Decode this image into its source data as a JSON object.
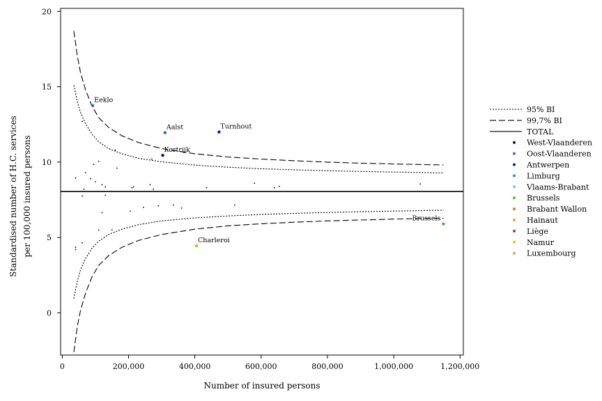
{
  "chart_data": {
    "type": "scatter",
    "title": "",
    "xlabel": "Number of insured persons",
    "ylabel_lines": [
      "Standardised number of H.C. services",
      "per 100,000 insured persons"
    ],
    "xlim": [
      -5000,
      1210000
    ],
    "ylim": [
      -2.8,
      20.2
    ],
    "xticks": [
      0,
      200000,
      400000,
      600000,
      800000,
      1000000,
      1200000
    ],
    "xtick_labels": [
      "0",
      "200,000",
      "400,000",
      "600,000",
      "800,000",
      "1,000,000",
      "1,200,000"
    ],
    "yticks": [
      0,
      5,
      10,
      15,
      20
    ],
    "ytick_labels": [
      "0",
      "5",
      "10",
      "15",
      "20"
    ],
    "grid": false,
    "legend_position": "right",
    "total": 8.05,
    "limits": {
      "x": [
        35000,
        45000,
        55000,
        70000,
        90000,
        110000,
        140000,
        180000,
        230000,
        300000,
        400000,
        500000,
        600000,
        700000,
        800000,
        900000,
        1000000,
        1100000,
        1150000
      ],
      "upper_95": [
        15.1,
        14.05,
        13.3,
        12.55,
        11.85,
        11.35,
        10.9,
        10.55,
        10.25,
        10.02,
        9.8,
        9.66,
        9.56,
        9.49,
        9.43,
        9.38,
        9.34,
        9.3,
        9.28
      ],
      "lower_95": [
        0.95,
        2.05,
        2.85,
        3.6,
        4.3,
        4.75,
        5.2,
        5.55,
        5.85,
        6.1,
        6.3,
        6.43,
        6.53,
        6.6,
        6.66,
        6.71,
        6.75,
        6.79,
        6.81
      ],
      "upper_997": [
        18.7,
        17.1,
        15.95,
        14.8,
        13.7,
        12.95,
        12.3,
        11.75,
        11.3,
        10.9,
        10.55,
        10.34,
        10.2,
        10.09,
        10.0,
        9.93,
        9.88,
        9.83,
        9.81
      ],
      "lower_997": [
        -2.6,
        -0.95,
        0.15,
        1.3,
        2.4,
        3.15,
        3.8,
        4.35,
        4.8,
        5.2,
        5.55,
        5.77,
        5.91,
        6.01,
        6.1,
        6.16,
        6.22,
        6.26,
        6.28
      ]
    },
    "small_points": {
      "x": [
        40000,
        60000,
        65000,
        70000,
        85000,
        95000,
        100000,
        110000,
        120000,
        130000,
        160000,
        165000,
        270000,
        40000,
        60000,
        110000,
        120000,
        130000,
        150000,
        210000,
        215000,
        265000,
        275000,
        435000,
        580000,
        640000,
        655000,
        1080000,
        205000,
        245000,
        290000,
        335000,
        360000,
        520000,
        40000,
        60000
      ],
      "y": [
        8.95,
        12.7,
        8.2,
        9.3,
        8.9,
        9.85,
        8.7,
        10.05,
        8.5,
        8.35,
        10.8,
        9.6,
        10.2,
        4.35,
        4.65,
        5.5,
        6.65,
        7.8,
        5.5,
        8.3,
        8.35,
        8.5,
        8.2,
        8.3,
        8.6,
        8.3,
        8.4,
        8.55,
        6.75,
        7.0,
        7.1,
        7.15,
        6.95,
        7.15,
        4.2,
        7.75
      ]
    },
    "labeled_points": [
      {
        "name": "Eeklo",
        "x": 92000,
        "y": 13.75,
        "color": "#4060d8"
      },
      {
        "name": "Aalst",
        "x": 310000,
        "y": 11.95,
        "color": "#3060e0"
      },
      {
        "name": "Turnhout",
        "x": 473000,
        "y": 12.0,
        "color": "#1010d0"
      },
      {
        "name": "Kortrijk",
        "x": 303000,
        "y": 10.45,
        "color": "#101060"
      },
      {
        "name": "Charleroi",
        "x": 405000,
        "y": 4.45,
        "color": "#f0a030"
      },
      {
        "name": "Brussels",
        "x": 1150000,
        "y": 5.9,
        "color": "#40c040"
      }
    ],
    "legend": [
      {
        "label": "95% BI",
        "kind": "line",
        "dash": "2,2",
        "color": "#000000"
      },
      {
        "label": "99,7% BI",
        "kind": "line",
        "dash": "9,4",
        "color": "#000000"
      },
      {
        "label": "TOTAL",
        "kind": "line",
        "dash": "",
        "color": "#000000"
      },
      {
        "label": "West-Vlaanderen",
        "kind": "dot",
        "color": "#101060"
      },
      {
        "label": "Oost-Vlaanderen",
        "kind": "dot",
        "color": "#4060d8"
      },
      {
        "label": "Antwerpen",
        "kind": "dot",
        "color": "#1010d0"
      },
      {
        "label": "Limburg",
        "kind": "dot",
        "color": "#2090e0"
      },
      {
        "label": "Vlaams-Brabant",
        "kind": "dot",
        "color": "#80c0f0"
      },
      {
        "label": "Brussels",
        "kind": "dot",
        "color": "#40c040"
      },
      {
        "label": "Brabant Wallon",
        "kind": "dot",
        "color": "#e07030"
      },
      {
        "label": "Hainaut",
        "kind": "dot",
        "color": "#f0a030"
      },
      {
        "label": "Liège",
        "kind": "dot",
        "color": "#a04020"
      },
      {
        "label": "Namur",
        "kind": "dot",
        "color": "#f0c020"
      },
      {
        "label": "Luxembourg",
        "kind": "dot",
        "color": "#f0a040"
      }
    ]
  }
}
